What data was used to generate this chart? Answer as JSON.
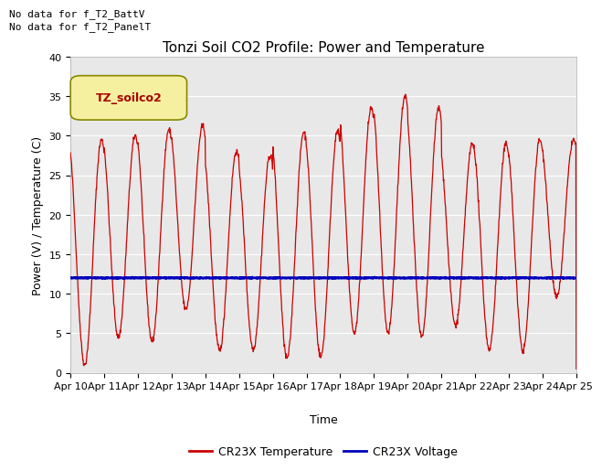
{
  "title": "Tonzi Soil CO2 Profile: Power and Temperature",
  "xlabel": "Time",
  "ylabel": "Power (V) / Temperature (C)",
  "ylim": [
    0,
    40
  ],
  "background_color": "#e8e8e8",
  "annotations": [
    "No data for f_T2_BattV",
    "No data for f_T2_PanelT"
  ],
  "legend_label": "TZ_soilco2",
  "x_tick_labels": [
    "Apr 10",
    "Apr 11",
    "Apr 12",
    "Apr 13",
    "Apr 14",
    "Apr 15",
    "Apr 16",
    "Apr 17",
    "Apr 18",
    "Apr 19",
    "Apr 20",
    "Apr 21",
    "Apr 22",
    "Apr 23",
    "Apr 24",
    "Apr 25"
  ],
  "temp_color": "#cc0000",
  "voltage_color": "#0000bb",
  "voltage_value": 12.0,
  "peaks": [
    29.5,
    30.0,
    30.8,
    31.2,
    28.0,
    27.5,
    30.5,
    30.5,
    33.5,
    35.0,
    33.5,
    29.0,
    29.0,
    29.5,
    29.5
  ],
  "mins": [
    1.0,
    4.5,
    4.0,
    8.0,
    2.8,
    3.0,
    1.8,
    2.0,
    5.0,
    5.0,
    4.5,
    6.0,
    3.0,
    2.8,
    9.5
  ],
  "title_fontsize": 11,
  "tick_fontsize": 8,
  "label_fontsize": 9,
  "annot_fontsize": 8,
  "legend_box_color": "#f5f0a0",
  "legend_box_edge": "#888800"
}
